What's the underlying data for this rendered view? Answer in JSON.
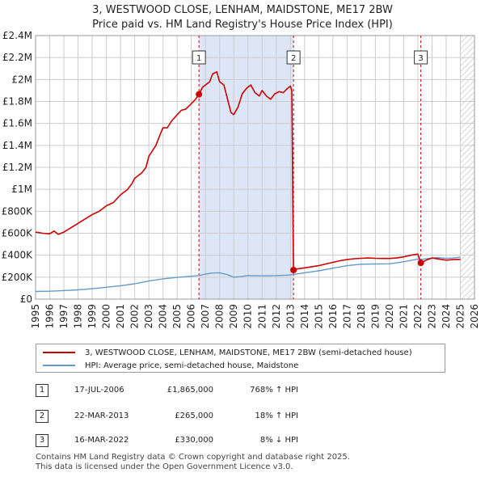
{
  "title": "3, WESTWOOD CLOSE, LENHAM, MAIDSTONE, ME17 2BW",
  "subtitle": "Price paid vs. HM Land Registry's House Price Index (HPI)",
  "colors": {
    "property": "#cc0000",
    "hpi": "#6699cc",
    "shade": "#dde6f7",
    "grid": "#cccccc",
    "marker_line": "#cc0000"
  },
  "legend": {
    "property_label": "3, WESTWOOD CLOSE, LENHAM, MAIDSTONE, ME17 2BW (semi-detached house)",
    "hpi_label": "HPI: Average price, semi-detached house, Maidstone"
  },
  "sales": [
    {
      "num": "1",
      "date": "17-JUL-2006",
      "price": "£1,865,000",
      "hpi": "768% ↑ HPI"
    },
    {
      "num": "2",
      "date": "22-MAR-2013",
      "price": "£265,000",
      "hpi": "18% ↑ HPI"
    },
    {
      "num": "3",
      "date": "16-MAR-2022",
      "price": "£330,000",
      "hpi": "8% ↓ HPI"
    }
  ],
  "footer": {
    "line1": "Contains HM Land Registry data © Crown copyright and database right 2025.",
    "line2": "This data is licensed under the Open Government Licence v3.0."
  },
  "chart_data": {
    "type": "line",
    "title": "3, WESTWOOD CLOSE, LENHAM, MAIDSTONE, ME17 2BW",
    "subtitle": "Price paid vs. HM Land Registry's House Price Index (HPI)",
    "xlabel": "",
    "ylabel": "",
    "xlim": [
      1995,
      2026
    ],
    "ylim": [
      0,
      2400000
    ],
    "x_ticks": [
      1995,
      1996,
      1997,
      1998,
      1999,
      2000,
      2001,
      2002,
      2003,
      2004,
      2005,
      2006,
      2007,
      2008,
      2009,
      2010,
      2011,
      2012,
      2013,
      2014,
      2015,
      2016,
      2017,
      2018,
      2019,
      2020,
      2021,
      2022,
      2023,
      2024,
      2025,
      2026
    ],
    "y_ticks": [
      {
        "value": 0,
        "label": "£0"
      },
      {
        "value": 200000,
        "label": "£200K"
      },
      {
        "value": 400000,
        "label": "£400K"
      },
      {
        "value": 600000,
        "label": "£600K"
      },
      {
        "value": 800000,
        "label": "£800K"
      },
      {
        "value": 1000000,
        "label": "£1M"
      },
      {
        "value": 1200000,
        "label": "£1.2M"
      },
      {
        "value": 1400000,
        "label": "£1.4M"
      },
      {
        "value": 1600000,
        "label": "£1.6M"
      },
      {
        "value": 1800000,
        "label": "£1.8M"
      },
      {
        "value": 2000000,
        "label": "£2M"
      },
      {
        "value": 2200000,
        "label": "£2.2M"
      },
      {
        "value": 2400000,
        "label": "£2.4M"
      }
    ],
    "shaded_ranges": [
      [
        2006.54,
        2013.22
      ]
    ],
    "future_hatch_from": 2025.0,
    "sale_markers": [
      {
        "label": "1",
        "x": 2006.54,
        "price": 1865000
      },
      {
        "label": "2",
        "x": 2013.22,
        "price": 265000
      },
      {
        "label": "3",
        "x": 2022.21,
        "price": 330000
      }
    ],
    "series": [
      {
        "name": "3, WESTWOOD CLOSE, LENHAM, MAIDSTONE, ME17 2BW (semi-detached house)",
        "points": [
          [
            1995.0,
            610000
          ],
          [
            1995.5,
            600000
          ],
          [
            1996.0,
            595000
          ],
          [
            1996.3,
            620000
          ],
          [
            1996.6,
            590000
          ],
          [
            1997.0,
            610000
          ],
          [
            1997.5,
            650000
          ],
          [
            1998.0,
            690000
          ],
          [
            1998.5,
            730000
          ],
          [
            1999.0,
            770000
          ],
          [
            1999.5,
            800000
          ],
          [
            2000.0,
            850000
          ],
          [
            2000.5,
            880000
          ],
          [
            2001.0,
            950000
          ],
          [
            2001.5,
            1000000
          ],
          [
            2001.8,
            1050000
          ],
          [
            2002.0,
            1100000
          ],
          [
            2002.5,
            1150000
          ],
          [
            2002.8,
            1200000
          ],
          [
            2003.0,
            1300000
          ],
          [
            2003.5,
            1400000
          ],
          [
            2003.8,
            1500000
          ],
          [
            2004.0,
            1560000
          ],
          [
            2004.3,
            1560000
          ],
          [
            2004.6,
            1620000
          ],
          [
            2005.0,
            1680000
          ],
          [
            2005.3,
            1720000
          ],
          [
            2005.6,
            1730000
          ],
          [
            2006.0,
            1780000
          ],
          [
            2006.3,
            1820000
          ],
          [
            2006.54,
            1865000
          ],
          [
            2006.8,
            1930000
          ],
          [
            2007.0,
            1950000
          ],
          [
            2007.3,
            1980000
          ],
          [
            2007.5,
            2050000
          ],
          [
            2007.8,
            2070000
          ],
          [
            2008.0,
            1980000
          ],
          [
            2008.3,
            1950000
          ],
          [
            2008.6,
            1800000
          ],
          [
            2008.8,
            1700000
          ],
          [
            2009.0,
            1680000
          ],
          [
            2009.3,
            1750000
          ],
          [
            2009.6,
            1870000
          ],
          [
            2009.9,
            1920000
          ],
          [
            2010.2,
            1950000
          ],
          [
            2010.5,
            1880000
          ],
          [
            2010.8,
            1850000
          ],
          [
            2011.0,
            1900000
          ],
          [
            2011.3,
            1850000
          ],
          [
            2011.6,
            1820000
          ],
          [
            2011.9,
            1870000
          ],
          [
            2012.2,
            1890000
          ],
          [
            2012.5,
            1880000
          ],
          [
            2012.8,
            1920000
          ],
          [
            2013.0,
            1940000
          ],
          [
            2013.1,
            1900000
          ],
          [
            2013.22,
            265000
          ],
          [
            2013.5,
            275000
          ],
          [
            2014.0,
            285000
          ],
          [
            2014.5,
            295000
          ],
          [
            2015.0,
            305000
          ],
          [
            2015.5,
            320000
          ],
          [
            2016.0,
            335000
          ],
          [
            2016.5,
            350000
          ],
          [
            2017.0,
            360000
          ],
          [
            2017.5,
            368000
          ],
          [
            2018.0,
            372000
          ],
          [
            2018.5,
            375000
          ],
          [
            2019.0,
            372000
          ],
          [
            2019.5,
            370000
          ],
          [
            2020.0,
            370000
          ],
          [
            2020.5,
            375000
          ],
          [
            2021.0,
            385000
          ],
          [
            2021.5,
            400000
          ],
          [
            2022.0,
            410000
          ],
          [
            2022.21,
            330000
          ],
          [
            2022.6,
            355000
          ],
          [
            2023.0,
            375000
          ],
          [
            2023.5,
            365000
          ],
          [
            2024.0,
            355000
          ],
          [
            2024.5,
            360000
          ],
          [
            2025.0,
            362000
          ]
        ]
      },
      {
        "name": "HPI: Average price, semi-detached house, Maidstone",
        "points": [
          [
            1995.0,
            70000
          ],
          [
            1996.0,
            72000
          ],
          [
            1997.0,
            78000
          ],
          [
            1998.0,
            85000
          ],
          [
            1999.0,
            95000
          ],
          [
            2000.0,
            108000
          ],
          [
            2001.0,
            122000
          ],
          [
            2002.0,
            140000
          ],
          [
            2003.0,
            165000
          ],
          [
            2004.0,
            185000
          ],
          [
            2005.0,
            198000
          ],
          [
            2006.0,
            208000
          ],
          [
            2006.54,
            215000
          ],
          [
            2007.0,
            228000
          ],
          [
            2007.5,
            238000
          ],
          [
            2008.0,
            240000
          ],
          [
            2008.5,
            225000
          ],
          [
            2009.0,
            200000
          ],
          [
            2009.5,
            205000
          ],
          [
            2010.0,
            215000
          ],
          [
            2011.0,
            212000
          ],
          [
            2012.0,
            214000
          ],
          [
            2013.0,
            220000
          ],
          [
            2013.22,
            225000
          ],
          [
            2014.0,
            240000
          ],
          [
            2015.0,
            258000
          ],
          [
            2016.0,
            282000
          ],
          [
            2017.0,
            305000
          ],
          [
            2018.0,
            318000
          ],
          [
            2019.0,
            320000
          ],
          [
            2020.0,
            322000
          ],
          [
            2021.0,
            340000
          ],
          [
            2022.0,
            365000
          ],
          [
            2022.21,
            360000
          ],
          [
            2023.0,
            375000
          ],
          [
            2023.5,
            378000
          ],
          [
            2024.0,
            372000
          ],
          [
            2024.5,
            375000
          ],
          [
            2025.0,
            382000
          ]
        ]
      }
    ]
  }
}
